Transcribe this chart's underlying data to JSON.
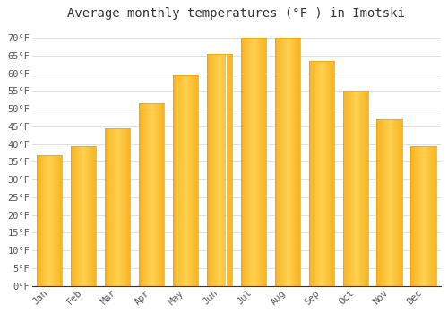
{
  "title": "Average monthly temperatures (°F ) in Imotski",
  "months": [
    "Jan",
    "Feb",
    "Mar",
    "Apr",
    "May",
    "Jun",
    "Jul",
    "Aug",
    "Sep",
    "Oct",
    "Nov",
    "Dec"
  ],
  "values": [
    37,
    39.5,
    44.5,
    51.5,
    59.5,
    65.5,
    70,
    70,
    63.5,
    55,
    47,
    39.5
  ],
  "bar_color_center": "#FFD050",
  "bar_color_edge": "#F0A000",
  "background_color": "#FFFFFF",
  "plot_bg_color": "#FFFFFF",
  "grid_color": "#E0E0E8",
  "title_fontsize": 10,
  "tick_fontsize": 7.5,
  "ylim": [
    0,
    73
  ],
  "yticks": [
    0,
    5,
    10,
    15,
    20,
    25,
    30,
    35,
    40,
    45,
    50,
    55,
    60,
    65,
    70
  ],
  "ylabel_suffix": "°F"
}
